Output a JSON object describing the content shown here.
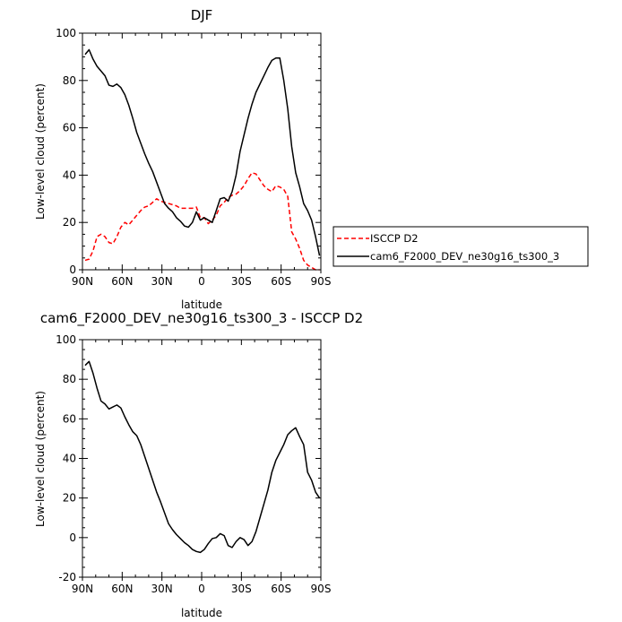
{
  "chart_data": [
    {
      "type": "line",
      "title": "DJF",
      "xlabel": "latitude",
      "ylabel": "Low-level cloud (percent)",
      "x_ticklabels": [
        "90N",
        "60N",
        "30N",
        "0",
        "30S",
        "60S",
        "90S"
      ],
      "x_tickvalues": [
        90,
        60,
        30,
        0,
        -30,
        -60,
        -90
      ],
      "xlim": [
        90,
        -90
      ],
      "ylim": [
        0,
        100
      ],
      "y_ticks": [
        0,
        20,
        40,
        60,
        80,
        100
      ],
      "legend": {
        "placement": "outside-right",
        "entries": [
          "ISCCP D2",
          "cam6_F2000_DEV_ne30g16_ts300_3"
        ]
      },
      "series": [
        {
          "name": "ISCCP D2",
          "color": "#ff0000",
          "dash": "dashed",
          "x": [
            88,
            85,
            82,
            79,
            76,
            73,
            70,
            67,
            64,
            61,
            58,
            55,
            52,
            49,
            46,
            43,
            40,
            37,
            34,
            31,
            28,
            25,
            22,
            19,
            16,
            13,
            10,
            7,
            4,
            1,
            -2,
            -5,
            -8,
            -11,
            -14,
            -17,
            -20,
            -23,
            -26,
            -29,
            -32,
            -35,
            -38,
            -41,
            -44,
            -47,
            -50,
            -53,
            -56,
            -59,
            -62,
            -65,
            -68,
            -71,
            -74,
            -77,
            -80,
            -83,
            -86,
            -89
          ],
          "y": [
            4,
            4.5,
            8,
            14,
            15,
            14,
            11.5,
            11,
            14,
            18,
            20,
            19,
            21,
            23,
            25,
            26.5,
            27,
            28.5,
            30,
            29,
            28.5,
            28,
            27.5,
            27,
            26,
            26,
            26,
            26,
            26.5,
            22,
            22,
            19.5,
            21,
            23,
            27,
            28.5,
            30.5,
            31.5,
            32,
            33.5,
            35.5,
            38.5,
            41,
            40.5,
            38,
            35.5,
            34,
            33,
            35.5,
            35,
            34,
            31,
            16,
            13,
            9,
            4,
            2,
            1,
            0,
            0
          ]
        },
        {
          "name": "cam6_F2000_DEV_ne30g16_ts300_3",
          "color": "#000000",
          "dash": "solid",
          "x": [
            88,
            85,
            82,
            79,
            76,
            73,
            70,
            67,
            64,
            61,
            58,
            55,
            52,
            49,
            46,
            43,
            40,
            37,
            34,
            31,
            28,
            25,
            22,
            19,
            16,
            13,
            10,
            7,
            4,
            1,
            -2,
            -5,
            -8,
            -11,
            -14,
            -17,
            -20,
            -23,
            -26,
            -29,
            -32,
            -35,
            -38,
            -41,
            -44,
            -47,
            -50,
            -53,
            -56,
            -59,
            -62,
            -65,
            -68,
            -71,
            -74,
            -77,
            -80,
            -83,
            -86,
            -89
          ],
          "y": [
            91,
            93,
            89,
            86,
            84,
            82,
            78,
            77.5,
            78.5,
            77,
            74,
            69.5,
            64,
            58,
            53.5,
            49,
            45,
            41.5,
            37,
            32.5,
            28,
            26,
            24.5,
            22,
            20.5,
            18.5,
            18,
            20,
            24.5,
            21,
            22,
            21,
            20,
            25,
            30,
            30.5,
            29,
            33,
            40,
            50,
            57,
            64,
            70,
            75,
            78.5,
            82,
            85.5,
            88.5,
            89.5,
            89.5,
            80,
            68,
            52,
            41,
            35,
            28,
            25,
            21,
            14,
            6
          ]
        }
      ]
    },
    {
      "type": "line",
      "title": "cam6_F2000_DEV_ne30g16_ts300_3 - ISCCP D2",
      "xlabel": "latitude",
      "ylabel": "Low-level cloud (percent)",
      "x_ticklabels": [
        "90N",
        "60N",
        "30N",
        "0",
        "30S",
        "60S",
        "90S"
      ],
      "x_tickvalues": [
        90,
        60,
        30,
        0,
        -30,
        -60,
        -90
      ],
      "xlim": [
        90,
        -90
      ],
      "ylim": [
        -20,
        100
      ],
      "y_ticks": [
        -20,
        0,
        20,
        40,
        60,
        80,
        100
      ],
      "series": [
        {
          "color": "#000000",
          "dash": "solid",
          "x": [
            88,
            85,
            82,
            79,
            76,
            73,
            70,
            67,
            64,
            61,
            58,
            55,
            52,
            49,
            46,
            43,
            40,
            37,
            34,
            31,
            28,
            25,
            22,
            19,
            16,
            13,
            10,
            7,
            4,
            1,
            -2,
            -5,
            -8,
            -11,
            -14,
            -17,
            -20,
            -23,
            -26,
            -29,
            -32,
            -35,
            -38,
            -41,
            -44,
            -47,
            -50,
            -53,
            -56,
            -59,
            -62,
            -65,
            -68,
            -71,
            -74,
            -77,
            -80,
            -83,
            -86,
            -89
          ],
          "y": [
            87,
            89,
            83,
            75.5,
            69,
            67.5,
            65,
            66,
            67,
            65.5,
            61,
            57,
            53.5,
            51.5,
            47,
            41,
            35,
            29,
            23,
            18,
            12.5,
            7,
            4,
            1.5,
            -0.5,
            -2.5,
            -4,
            -6,
            -7,
            -7.5,
            -6,
            -3,
            -0.5,
            0,
            2,
            1,
            -4,
            -5,
            -2,
            0,
            -1,
            -4,
            -2,
            3,
            10,
            17,
            24,
            33,
            39,
            43,
            47,
            52,
            54,
            55.5,
            51,
            47,
            33,
            29,
            23,
            20
          ]
        }
      ]
    }
  ]
}
